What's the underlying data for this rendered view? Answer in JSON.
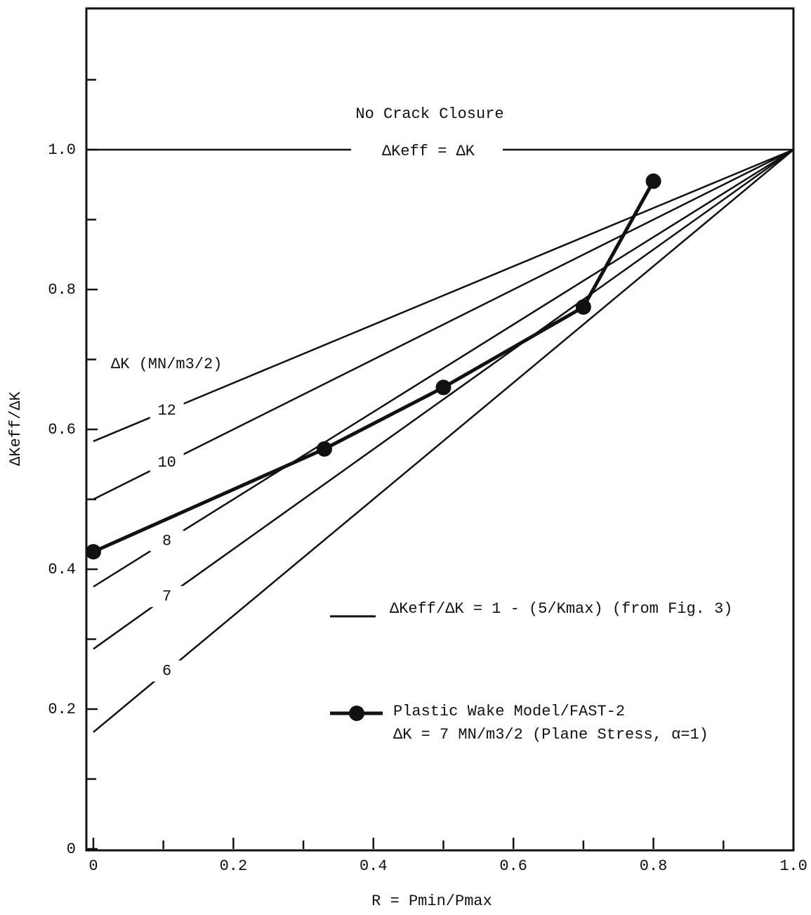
{
  "chart_data": {
    "type": "line",
    "x_label": "R = Pmin/Pmax",
    "y_label": "ΔKeff/ΔK",
    "xlim": [
      -0.01,
      1.0
    ],
    "ylim": [
      0,
      1.2
    ],
    "xticks": [
      0,
      0.2,
      0.4,
      0.6,
      0.8,
      {
        "value": 1,
        "label": "1.0"
      }
    ],
    "yticks": [
      0,
      0.2,
      0.4,
      0.6,
      0.8,
      {
        "value": 1,
        "label": "1.0"
      }
    ],
    "xminor": [
      0.1,
      0.3,
      0.5,
      0.7,
      0.9
    ],
    "yminor": [
      0.1,
      0.3,
      0.5,
      0.7,
      0.9,
      1.1
    ],
    "reference_line": {
      "value": 1,
      "label": "ΔKeff = ΔK",
      "title": "No Crack Closure"
    },
    "group_label": "ΔK (MN/m3/2)",
    "series": [
      {
        "name": "12",
        "color": "#111111",
        "x": [
          0,
          1
        ],
        "values": [
          0.583,
          1
        ]
      },
      {
        "name": "10",
        "color": "#111111",
        "x": [
          0,
          1
        ],
        "values": [
          0.5,
          1
        ]
      },
      {
        "name": "8",
        "color": "#111111",
        "x": [
          0,
          1
        ],
        "values": [
          0.375,
          1
        ]
      },
      {
        "name": "7",
        "color": "#111111",
        "x": [
          0,
          1
        ],
        "values": [
          0.286,
          1
        ]
      },
      {
        "name": "6",
        "color": "#111111",
        "x": [
          0,
          1
        ],
        "values": [
          0.167,
          1
        ]
      },
      {
        "name": "Plastic Wake Model/FAST-2",
        "note": "ΔK = 7 MN/m3/2 (Plane Stress, α=1)",
        "color": "#111111",
        "markers": true,
        "x": [
          0,
          0.33,
          0.5,
          0.7,
          0.8
        ],
        "values": [
          0.425,
          0.572,
          0.66,
          0.775,
          0.955
        ]
      }
    ],
    "formula_legend": "ΔKeff/ΔK = 1 - (5/Kmax) (from Fig. 3)"
  }
}
